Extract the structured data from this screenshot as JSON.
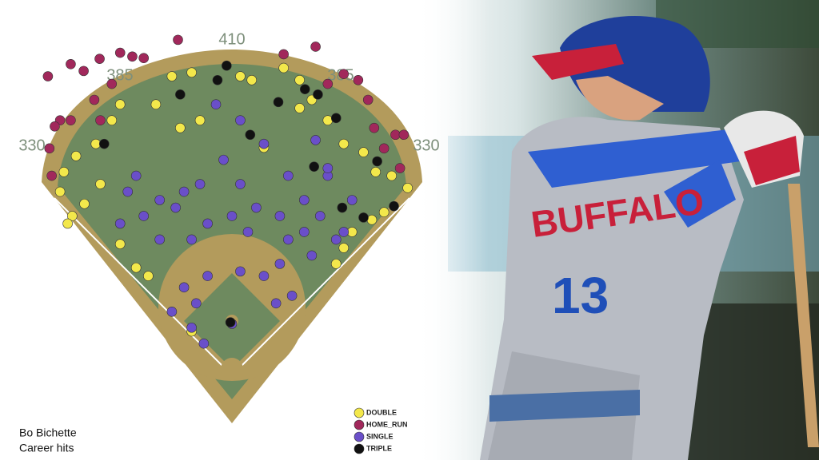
{
  "chart_data": {
    "type": "scatter",
    "series": [
      {
        "name": "DOUBLE",
        "color": "#f3e84b",
        "x": [
          -79,
          -53,
          -100,
          -147,
          -158,
          -179,
          -205,
          -221,
          -226,
          -210,
          -194,
          -216,
          -173,
          -147,
          -126,
          -110,
          -68,
          -42,
          11,
          26,
          68,
          89,
          105,
          126,
          147,
          173,
          189,
          210,
          231,
          200,
          184,
          158,
          147,
          137,
          42,
          89,
          -53
        ],
        "y": [
          389,
          394,
          352,
          352,
          331,
          300,
          284,
          263,
          237,
          205,
          221,
          195,
          247,
          168,
          137,
          126,
          321,
          331,
          389,
          384,
          400,
          384,
          358,
          331,
          300,
          289,
          263,
          258,
          242,
          210,
          200,
          184,
          163,
          142,
          295,
          347,
          53
        ]
      },
      {
        "name": "HOME_RUN",
        "color": "#a1285b",
        "x": [
          -242,
          -212,
          -195,
          -174,
          -147,
          -131,
          -116,
          -71,
          -158,
          -181,
          -226,
          -233,
          -212,
          -240,
          -237,
          68,
          110,
          126,
          147,
          166,
          179,
          187,
          215,
          226,
          200,
          221,
          -173
        ],
        "y": [
          389,
          405,
          396,
          412,
          420,
          415,
          413,
          437,
          379,
          358,
          331,
          323,
          331,
          294,
          258,
          418,
          428,
          379,
          392,
          384,
          358,
          321,
          312,
          312,
          294,
          268,
          331
        ]
      },
      {
        "name": "SINGLE",
        "color": "#6a4fc9",
        "x": [
          -63,
          -47,
          -79,
          -32,
          11,
          42,
          63,
          58,
          79,
          -37,
          0,
          -53,
          -95,
          -116,
          -74,
          -42,
          -11,
          11,
          32,
          -21,
          11,
          42,
          74,
          95,
          116,
          137,
          74,
          105,
          -137,
          -147,
          -126,
          -63,
          -32,
          0,
          21,
          126,
          63,
          -95,
          -53,
          95,
          158,
          147,
          110,
          126
        ],
        "y": [
          111,
          90,
          79,
          126,
          132,
          126,
          142,
          90,
          100,
          37,
          63,
          58,
          174,
          205,
          216,
          247,
          279,
          247,
          216,
          352,
          331,
          300,
          258,
          226,
          205,
          174,
          174,
          153,
          237,
          195,
          258,
          237,
          195,
          205,
          184,
          258,
          205,
          226,
          174,
          184,
          226,
          184,
          305,
          268
        ]
      },
      {
        "name": "TRIPLE",
        "color": "#111111",
        "x": [
          -7,
          -19,
          -68,
          -168,
          61,
          96,
          113,
          137,
          24,
          108,
          145,
          173,
          213,
          191,
          -2
        ],
        "y": [
          403,
          384,
          365,
          300,
          355,
          372,
          365,
          334,
          312,
          270,
          216,
          203,
          218,
          277,
          65
        ]
      }
    ],
    "xlim": [
      -305,
      305
    ],
    "ylim": [
      -70,
      480
    ],
    "fence_labels": [
      "330",
      "385",
      "410",
      "385",
      "330"
    ],
    "caption": [
      "Bo Bichette",
      "Career hits"
    ]
  },
  "photo": {
    "jersey_text": "BUFFALO",
    "jersey_number": "13"
  }
}
